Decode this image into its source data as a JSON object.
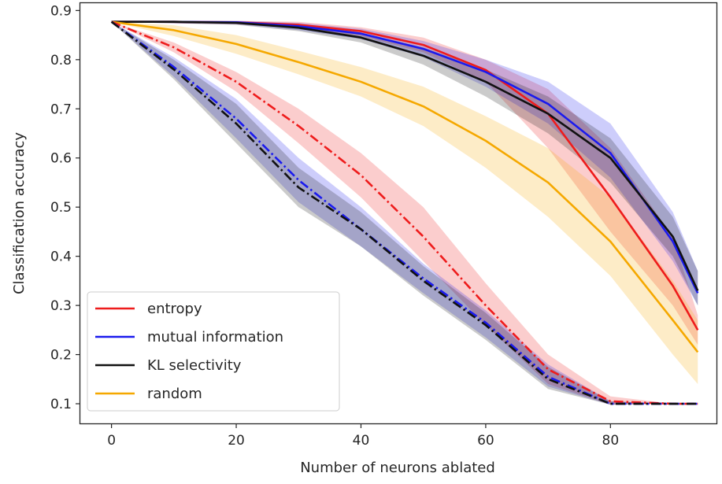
{
  "chart_data": {
    "type": "line",
    "title": "",
    "xlabel": "Number of neurons ablated",
    "ylabel": "Classification accuracy",
    "xlim": [
      -5,
      97
    ],
    "ylim": [
      0.06,
      0.915
    ],
    "xticks": [
      0,
      20,
      40,
      60,
      80
    ],
    "xtick_labels": [
      "0",
      "20",
      "40",
      "60",
      "80"
    ],
    "yticks": [
      0.1,
      0.2,
      0.3,
      0.4,
      0.5,
      0.6,
      0.7,
      0.8,
      0.9
    ],
    "ytick_labels": [
      "0.1",
      "0.2",
      "0.3",
      "0.4",
      "0.5",
      "0.6",
      "0.7",
      "0.8",
      "0.9"
    ],
    "grid": false,
    "legend": {
      "placement": "lower-left",
      "entries": [
        {
          "label": "entropy",
          "color": "#ee1c1c"
        },
        {
          "label": "mutual information",
          "color": "#1a1aee"
        },
        {
          "label": "KL selectivity",
          "color": "#111111"
        },
        {
          "label": "random",
          "color": "#f5a800"
        }
      ]
    },
    "x": [
      0,
      10,
      20,
      30,
      40,
      50,
      60,
      70,
      80,
      90,
      94
    ],
    "series": [
      {
        "name": "entropy",
        "linestyle": "solid",
        "color": "#ee1c1c",
        "values": [
          0.877,
          0.877,
          0.876,
          0.871,
          0.858,
          0.83,
          0.779,
          0.69,
          0.52,
          0.34,
          0.25
        ],
        "lower": [
          0.877,
          0.874,
          0.872,
          0.864,
          0.848,
          0.815,
          0.755,
          0.62,
          0.45,
          0.3,
          0.22
        ],
        "upper": [
          0.877,
          0.879,
          0.879,
          0.877,
          0.866,
          0.845,
          0.8,
          0.74,
          0.62,
          0.44,
          0.28
        ]
      },
      {
        "name": "mutual information",
        "linestyle": "solid",
        "color": "#1a1aee",
        "values": [
          0.877,
          0.877,
          0.876,
          0.868,
          0.853,
          0.822,
          0.775,
          0.71,
          0.61,
          0.43,
          0.325
        ],
        "lower": [
          0.877,
          0.874,
          0.872,
          0.86,
          0.842,
          0.805,
          0.745,
          0.67,
          0.56,
          0.39,
          0.3
        ],
        "upper": [
          0.877,
          0.879,
          0.879,
          0.875,
          0.863,
          0.838,
          0.8,
          0.755,
          0.67,
          0.49,
          0.37
        ]
      },
      {
        "name": "KL selectivity",
        "linestyle": "solid",
        "color": "#111111",
        "values": [
          0.877,
          0.877,
          0.875,
          0.865,
          0.845,
          0.808,
          0.755,
          0.69,
          0.6,
          0.44,
          0.33
        ],
        "lower": [
          0.877,
          0.874,
          0.871,
          0.858,
          0.835,
          0.79,
          0.725,
          0.65,
          0.55,
          0.4,
          0.3
        ],
        "upper": [
          0.877,
          0.879,
          0.878,
          0.872,
          0.855,
          0.825,
          0.78,
          0.725,
          0.64,
          0.48,
          0.37
        ]
      },
      {
        "name": "random",
        "linestyle": "solid",
        "color": "#f5a800",
        "values": [
          0.877,
          0.86,
          0.832,
          0.795,
          0.755,
          0.705,
          0.635,
          0.55,
          0.43,
          0.27,
          0.205
        ],
        "lower": [
          0.877,
          0.848,
          0.812,
          0.77,
          0.725,
          0.665,
          0.58,
          0.48,
          0.36,
          0.2,
          0.14
        ],
        "upper": [
          0.877,
          0.87,
          0.85,
          0.818,
          0.785,
          0.745,
          0.685,
          0.62,
          0.52,
          0.35,
          0.27
        ]
      },
      {
        "name": "entropy",
        "linestyle": "dashdot",
        "color": "#ee1c1c",
        "values": [
          0.877,
          0.825,
          0.755,
          0.665,
          0.565,
          0.44,
          0.3,
          0.17,
          0.105,
          0.1,
          0.1
        ],
        "lower": [
          0.877,
          0.815,
          0.735,
          0.63,
          0.52,
          0.39,
          0.26,
          0.14,
          0.098,
          0.1,
          0.1
        ],
        "upper": [
          0.877,
          0.835,
          0.775,
          0.7,
          0.61,
          0.5,
          0.345,
          0.2,
          0.115,
          0.1,
          0.1
        ]
      },
      {
        "name": "mutual information",
        "linestyle": "dashdot",
        "color": "#1a1aee",
        "values": [
          0.877,
          0.785,
          0.68,
          0.555,
          0.455,
          0.355,
          0.265,
          0.155,
          0.1,
          0.1,
          0.1
        ],
        "lower": [
          0.877,
          0.765,
          0.64,
          0.51,
          0.42,
          0.325,
          0.235,
          0.135,
          0.098,
          0.1,
          0.1
        ],
        "upper": [
          0.877,
          0.805,
          0.72,
          0.6,
          0.5,
          0.385,
          0.29,
          0.18,
          0.105,
          0.1,
          0.1
        ]
      },
      {
        "name": "KL selectivity",
        "linestyle": "dashdot",
        "color": "#111111",
        "values": [
          0.877,
          0.78,
          0.67,
          0.54,
          0.455,
          0.35,
          0.26,
          0.15,
          0.1,
          0.1,
          0.1
        ],
        "lower": [
          0.877,
          0.76,
          0.63,
          0.5,
          0.42,
          0.32,
          0.23,
          0.13,
          0.098,
          0.1,
          0.1
        ],
        "upper": [
          0.877,
          0.8,
          0.71,
          0.58,
          0.49,
          0.38,
          0.285,
          0.175,
          0.105,
          0.1,
          0.1
        ]
      }
    ]
  }
}
